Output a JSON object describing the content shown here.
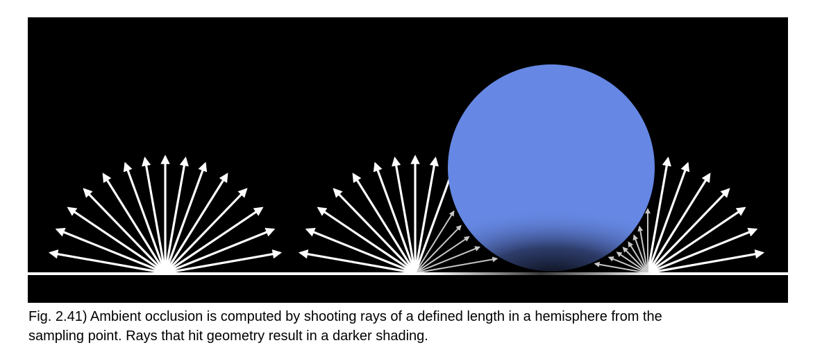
{
  "figure": {
    "background_color": "#000000",
    "ground_color": "#ffffff",
    "sphere_color": "#6688e4",
    "ray_color": "#ffffff",
    "occluded_ray_color": "#c0c0c0",
    "panels": [
      "unoccluded-sampling-point",
      "left-of-sphere-sampling-point",
      "right-of-sphere-sampling-point"
    ]
  },
  "caption": {
    "line1": "Fig. 2.41) Ambient occlusion is computed by shooting rays of a defined length in a hemisphere from the",
    "line2": "sampling point. Rays that hit geometry result in a darker shading."
  }
}
